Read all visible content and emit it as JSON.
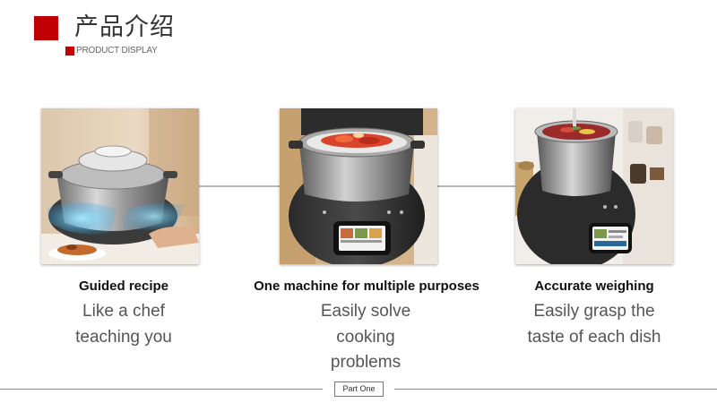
{
  "header": {
    "title": "产品介绍",
    "subtitle": "PRODUCT DISPLAY",
    "accent_color": "#c00000"
  },
  "features": [
    {
      "title": "Guided recipe",
      "description": "Like a chef teaching you"
    },
    {
      "title": "One machine for multiple purposes",
      "description": "Easily solve cooking problems"
    },
    {
      "title": "Accurate weighing",
      "description": "Easily grasp the taste of each dish"
    }
  ],
  "footer": {
    "tag": "Part One"
  }
}
